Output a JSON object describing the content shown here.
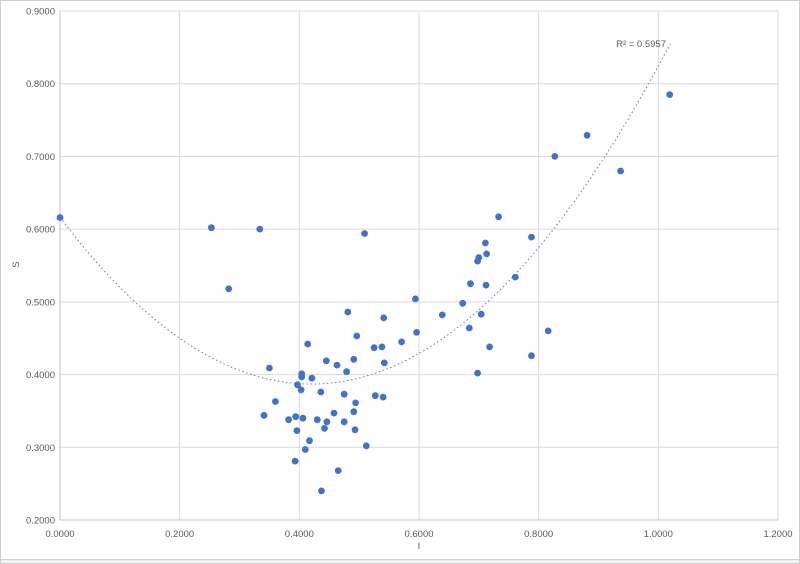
{
  "colors": {
    "marker": "#4472c4",
    "trendline": "#4472c4",
    "gridline": "#d9d9d9",
    "axis_line": "#bfbfbf",
    "tick_text": "#595959",
    "background": "#ffffff"
  },
  "chart_data": {
    "type": "scatter",
    "title": "",
    "xlabel": "I",
    "ylabel": "S",
    "xlim": [
      0.0,
      1.2
    ],
    "ylim": [
      0.2,
      0.9
    ],
    "grid": true,
    "x_tick_values": [
      0.0,
      0.2,
      0.4,
      0.6,
      0.8,
      1.0,
      1.2
    ],
    "x_tick_labels": [
      "0.0000",
      "0.2000",
      "0.4000",
      "0.6000",
      "0.8000",
      "1.0000",
      "1.2000"
    ],
    "y_tick_values": [
      0.2,
      0.3,
      0.4,
      0.5,
      0.6,
      0.7,
      0.8,
      0.9
    ],
    "y_tick_labels": [
      "0.2000",
      "0.3000",
      "0.4000",
      "0.5000",
      "0.6000",
      "0.7000",
      "0.8000",
      "0.9000"
    ],
    "series": [
      {
        "name": "S",
        "marker": "circle",
        "points": [
          [
            0.0,
            0.616
          ],
          [
            0.253,
            0.602
          ],
          [
            0.334,
            0.6
          ],
          [
            0.282,
            0.518
          ],
          [
            0.509,
            0.594
          ],
          [
            0.481,
            0.486
          ],
          [
            0.496,
            0.453
          ],
          [
            0.35,
            0.409
          ],
          [
            0.414,
            0.442
          ],
          [
            0.445,
            0.419
          ],
          [
            0.491,
            0.421
          ],
          [
            0.463,
            0.413
          ],
          [
            0.479,
            0.404
          ],
          [
            0.404,
            0.401
          ],
          [
            0.404,
            0.397
          ],
          [
            0.421,
            0.395
          ],
          [
            0.397,
            0.386
          ],
          [
            0.403,
            0.379
          ],
          [
            0.436,
            0.376
          ],
          [
            0.475,
            0.373
          ],
          [
            0.36,
            0.363
          ],
          [
            0.494,
            0.361
          ],
          [
            0.491,
            0.349
          ],
          [
            0.341,
            0.344
          ],
          [
            0.382,
            0.338
          ],
          [
            0.394,
            0.342
          ],
          [
            0.406,
            0.34
          ],
          [
            0.43,
            0.338
          ],
          [
            0.446,
            0.335
          ],
          [
            0.458,
            0.347
          ],
          [
            0.475,
            0.335
          ],
          [
            0.493,
            0.324
          ],
          [
            0.442,
            0.326
          ],
          [
            0.396,
            0.323
          ],
          [
            0.417,
            0.309
          ],
          [
            0.41,
            0.297
          ],
          [
            0.512,
            0.302
          ],
          [
            0.393,
            0.281
          ],
          [
            0.465,
            0.268
          ],
          [
            0.437,
            0.24
          ],
          [
            0.525,
            0.437
          ],
          [
            0.538,
            0.438
          ],
          [
            0.571,
            0.445
          ],
          [
            0.542,
            0.416
          ],
          [
            0.527,
            0.371
          ],
          [
            0.54,
            0.369
          ],
          [
            0.541,
            0.478
          ],
          [
            0.594,
            0.504
          ],
          [
            0.596,
            0.458
          ],
          [
            0.639,
            0.482
          ],
          [
            0.673,
            0.498
          ],
          [
            0.684,
            0.464
          ],
          [
            0.686,
            0.525
          ],
          [
            0.698,
            0.402
          ],
          [
            0.7,
            0.561
          ],
          [
            0.698,
            0.556
          ],
          [
            0.704,
            0.483
          ],
          [
            0.711,
            0.581
          ],
          [
            0.712,
            0.523
          ],
          [
            0.713,
            0.566
          ],
          [
            0.718,
            0.438
          ],
          [
            0.733,
            0.617
          ],
          [
            0.761,
            0.534
          ],
          [
            0.788,
            0.589
          ],
          [
            0.788,
            0.426
          ],
          [
            0.816,
            0.46
          ],
          [
            0.827,
            0.7
          ],
          [
            0.881,
            0.729
          ],
          [
            0.937,
            0.68
          ],
          [
            1.019,
            0.785
          ]
        ]
      }
    ],
    "trendline": {
      "type": "polynomial",
      "order": 2,
      "equation_form": "y = a*(x-h)^2 + k",
      "a": 1.3,
      "h": 0.42,
      "k": 0.387,
      "x_start": 0.0,
      "x_end": 1.021,
      "style": "dotted",
      "r_squared_label": "R² = 0.5957"
    }
  }
}
